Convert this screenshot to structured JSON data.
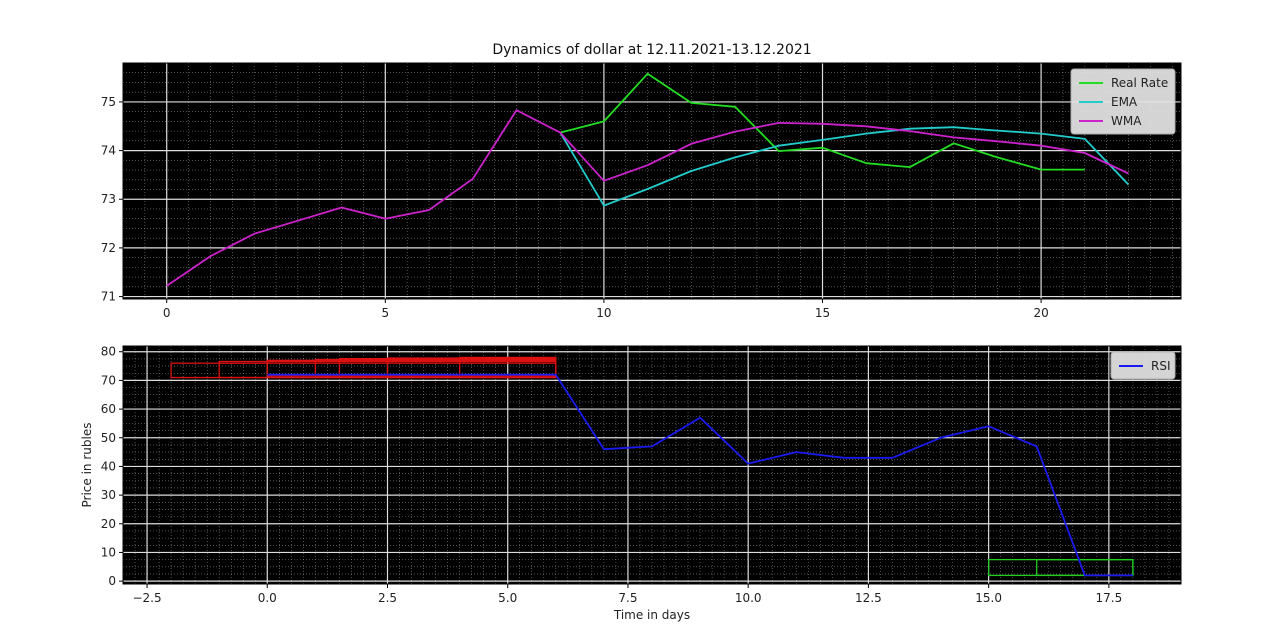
{
  "chart_data": [
    {
      "type": "line",
      "title": "Dynamics of dollar at 12.11.2021-13.12.2021",
      "xlabel": "",
      "ylabel": "",
      "xlim": [
        -1.0,
        23.2
      ],
      "ylim": [
        70.95,
        75.8
      ],
      "xticks": [
        0,
        5,
        10,
        15,
        20
      ],
      "yticks": [
        71,
        72,
        73,
        74,
        75
      ],
      "grid": true,
      "background": "#000000",
      "legend_position": "top-right",
      "series": [
        {
          "name": "Real Rate",
          "color": "#22dd22",
          "x": [
            9,
            10,
            11,
            12,
            13,
            14,
            15,
            16,
            17,
            18,
            19,
            20,
            21
          ],
          "y": [
            74.37,
            74.6,
            75.58,
            74.98,
            74.9,
            73.99,
            74.06,
            73.74,
            73.66,
            74.15,
            73.86,
            73.61,
            73.61
          ]
        },
        {
          "name": "EMA",
          "color": "#22cccc",
          "x": [
            9,
            10,
            11,
            12,
            13,
            14,
            15,
            16,
            17,
            18,
            19,
            20,
            21,
            22
          ],
          "y": [
            74.37,
            72.87,
            73.21,
            73.58,
            73.86,
            74.1,
            74.22,
            74.35,
            74.45,
            74.48,
            74.41,
            74.35,
            74.24,
            73.3
          ]
        },
        {
          "name": "WMA",
          "color": "#cc22cc",
          "x": [
            0,
            1,
            2,
            3,
            4,
            5,
            6,
            7,
            8,
            9,
            10,
            11,
            12,
            13,
            14,
            15,
            16,
            17,
            18,
            19,
            20,
            21,
            22
          ],
          "y": [
            71.22,
            71.83,
            72.29,
            72.56,
            72.83,
            72.6,
            72.78,
            73.42,
            74.83,
            74.37,
            73.38,
            73.7,
            74.14,
            74.39,
            74.57,
            74.55,
            74.5,
            74.4,
            74.27,
            74.19,
            74.1,
            73.95,
            73.53
          ]
        }
      ]
    },
    {
      "type": "line",
      "title": "",
      "xlabel": "Time in days",
      "ylabel": "Price in rubles",
      "xlim": [
        -3.0,
        19.0
      ],
      "ylim": [
        -1,
        82
      ],
      "xticks": [
        -2.5,
        0.0,
        2.5,
        5.0,
        7.5,
        10.0,
        12.5,
        15.0,
        17.5
      ],
      "xtick_labels": [
        "−2.5",
        "0.0",
        "2.5",
        "5.0",
        "7.5",
        "10.0",
        "12.5",
        "15.0",
        "17.5"
      ],
      "yticks": [
        0,
        10,
        20,
        30,
        40,
        50,
        60,
        70,
        80
      ],
      "grid": true,
      "background": "#000000",
      "legend_position": "top-right",
      "series": [
        {
          "name": "RSI",
          "color": "#1a1aee",
          "x": [
            0,
            1,
            2,
            3,
            4,
            5,
            6,
            7,
            8,
            9,
            10,
            11,
            12,
            13,
            14,
            15,
            16,
            17,
            18
          ],
          "y": [
            72,
            72,
            72,
            72,
            72,
            72,
            72,
            46,
            47,
            57,
            41,
            45,
            43,
            43,
            50,
            54,
            47,
            2,
            2
          ]
        }
      ],
      "zones": [
        {
          "kind": "overbought",
          "color": "#dd1111",
          "rects": [
            {
              "x0": -2,
              "x1": 6,
              "y0": 71,
              "y1": 76
            },
            {
              "x0": -1,
              "x1": 6,
              "y0": 71,
              "y1": 76.6
            },
            {
              "x0": 0,
              "x1": 6,
              "y0": 71.5,
              "y1": 77
            },
            {
              "x0": 1,
              "x1": 6,
              "y0": 71.5,
              "y1": 77.3
            },
            {
              "x0": 1.5,
              "x1": 6,
              "y0": 72,
              "y1": 77.6
            },
            {
              "x0": 2.5,
              "x1": 6,
              "y0": 72,
              "y1": 77.8
            },
            {
              "x0": 4,
              "x1": 6,
              "y0": 72,
              "y1": 78
            }
          ]
        },
        {
          "kind": "oversold",
          "color": "#22cc22",
          "rects": [
            {
              "x0": 15,
              "x1": 18,
              "y0": 2,
              "y1": 7.5
            },
            {
              "x0": 16,
              "x1": 18,
              "y0": 2,
              "y1": 7.5
            }
          ]
        }
      ]
    }
  ]
}
